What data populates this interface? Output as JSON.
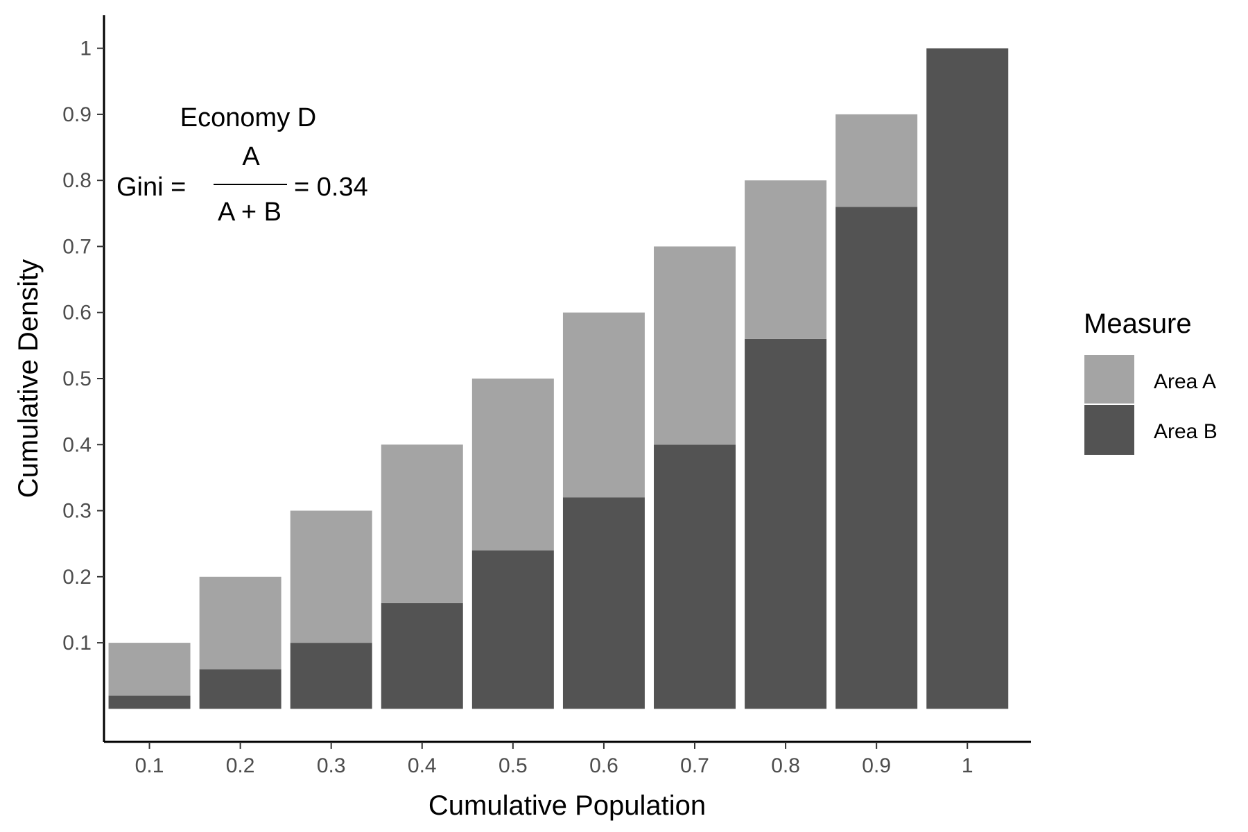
{
  "chart_data": {
    "type": "bar",
    "stacked": true,
    "categories": [
      "0.1",
      "0.2",
      "0.3",
      "0.4",
      "0.5",
      "0.6",
      "0.7",
      "0.8",
      "0.9",
      "1"
    ],
    "x": [
      0.1,
      0.2,
      0.3,
      0.4,
      0.5,
      0.6,
      0.7,
      0.8,
      0.9,
      1.0
    ],
    "series": [
      {
        "name": "Area B",
        "color": "#535353",
        "values": [
          0.02,
          0.06,
          0.1,
          0.16,
          0.24,
          0.32,
          0.4,
          0.56,
          0.76,
          1.0
        ]
      },
      {
        "name": "Area A",
        "color": "#a4a4a4",
        "values": [
          0.08,
          0.14,
          0.2,
          0.24,
          0.26,
          0.28,
          0.3,
          0.24,
          0.14,
          0.0
        ]
      }
    ],
    "xlabel": "Cumulative Population",
    "ylabel": "Cumulative Density",
    "ylim": [
      -0.05,
      1.05
    ],
    "yticks": [
      "0.1",
      "0.2",
      "0.3",
      "0.4",
      "0.5",
      "0.6",
      "0.7",
      "0.8",
      "0.9",
      "1"
    ],
    "ytick_values": [
      0.1,
      0.2,
      0.3,
      0.4,
      0.5,
      0.6,
      0.7,
      0.8,
      0.9,
      1.0
    ],
    "grid": false,
    "legend": {
      "title": "Measure",
      "position": "right",
      "items": [
        {
          "label": "Area A",
          "color": "#a4a4a4"
        },
        {
          "label": "Area B",
          "color": "#535353"
        }
      ]
    },
    "annotation": {
      "title": "Economy D",
      "gini_label": "Gini =",
      "numerator": "A",
      "denominator": "A + B",
      "result": "= 0.34"
    }
  }
}
